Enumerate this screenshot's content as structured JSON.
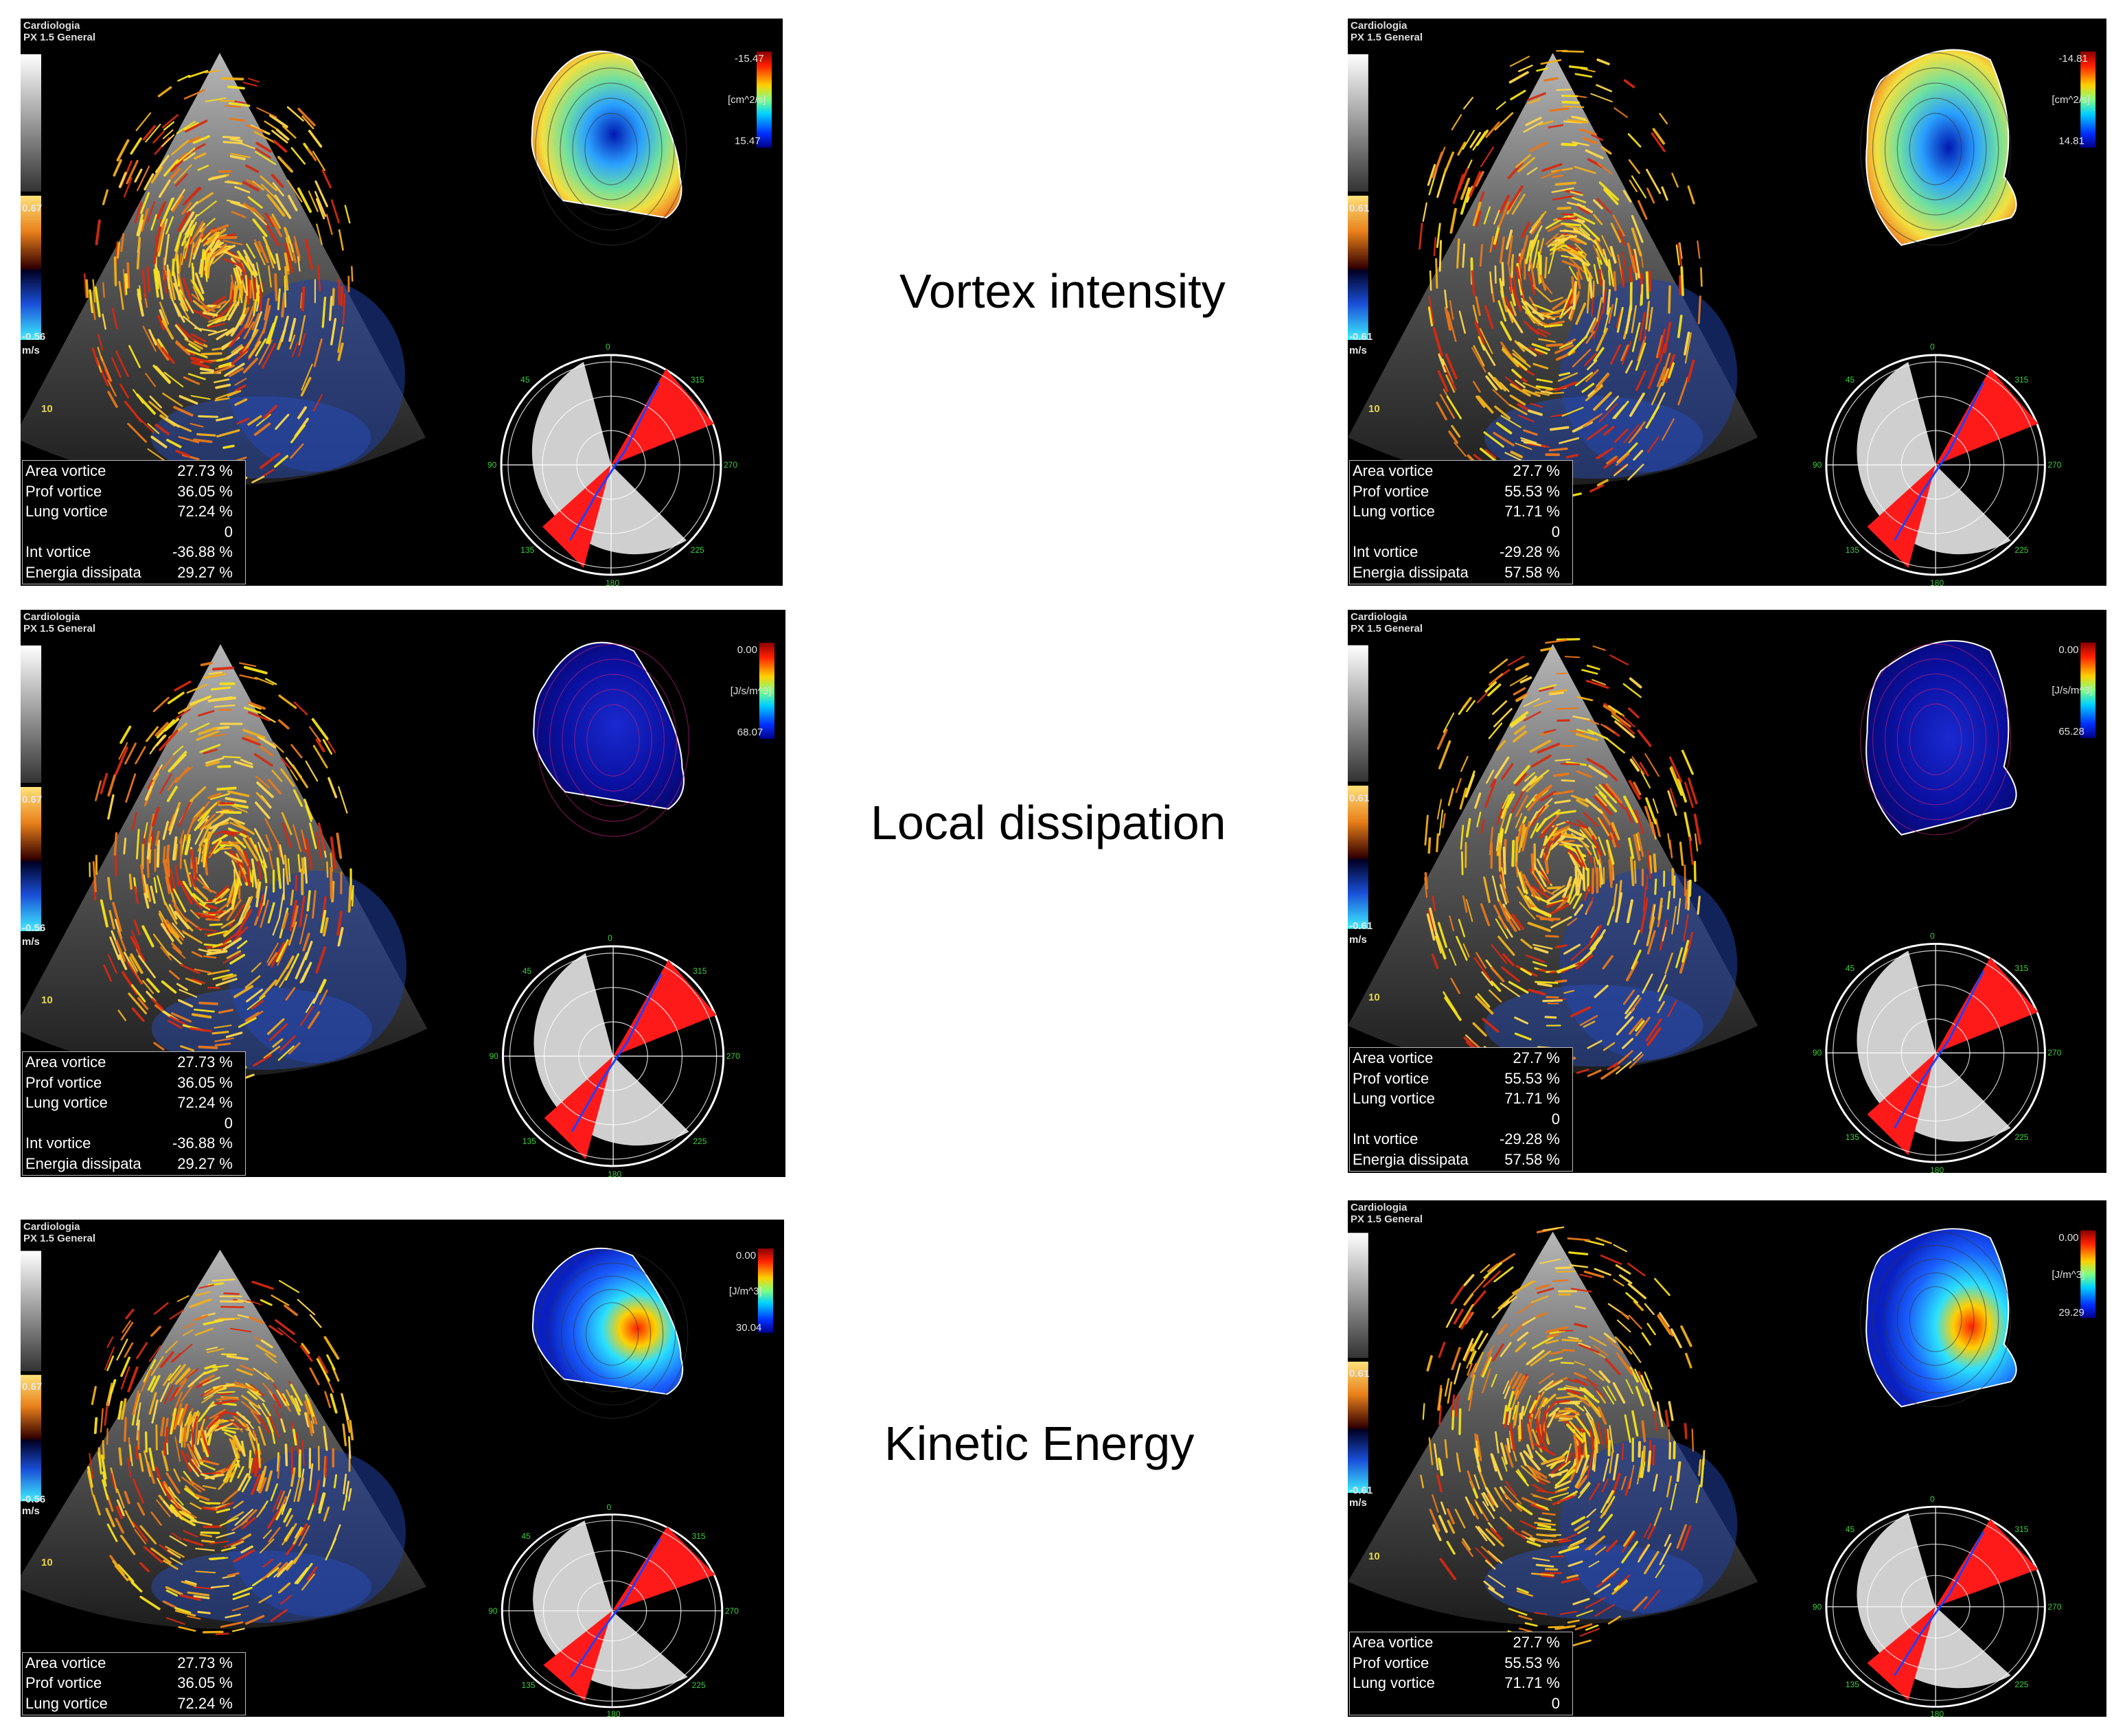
{
  "labels": {
    "vortex": "Vortex intensity",
    "dissipation": "Local dissipation",
    "kinetic": "Kinetic Energy"
  },
  "header": {
    "line1": "Cardiologia",
    "line2": "PX 1.5   General"
  },
  "panels": {
    "tl": {
      "scale_top": "0.67",
      "scale_bottom": "-0.56",
      "unit": "m/s",
      "depth": "10",
      "cb_top": "-15.47",
      "cb_mid": "[cm^2/s]",
      "cb_bot": "15.47",
      "stats": [
        {
          "k": "Area vortice",
          "v": "27.73 %"
        },
        {
          "k": "Prof vortice",
          "v": "36.05 %"
        },
        {
          "k": "Lung vortice",
          "v": "72.24 %"
        },
        {
          "k": "",
          "v": "0"
        },
        {
          "k": "Int vortice",
          "v": "-36.88 %"
        },
        {
          "k": "Energia dissipata",
          "v": "29.27 %"
        }
      ]
    },
    "tr": {
      "scale_top": "0.61",
      "scale_bottom": "-0.61",
      "unit": "m/s",
      "depth": "10",
      "cb_top": "-14.81",
      "cb_mid": "[cm^2/s]",
      "cb_bot": "14.81",
      "stats": [
        {
          "k": "Area vortice",
          "v": "27.7 %"
        },
        {
          "k": "Prof vortice",
          "v": "55.53 %"
        },
        {
          "k": "Lung vortice",
          "v": "71.71 %"
        },
        {
          "k": "",
          "v": "0"
        },
        {
          "k": "Int vortice",
          "v": "-29.28 %"
        },
        {
          "k": "Energia dissipata",
          "v": "57.58 %"
        }
      ]
    },
    "ml": {
      "scale_top": "0.67",
      "scale_bottom": "-0.56",
      "unit": "m/s",
      "depth": "10",
      "cb_top": "0.00",
      "cb_mid": "[J/s/m^3]",
      "cb_bot": "68.07",
      "stats": [
        {
          "k": "Area vortice",
          "v": "27.73 %"
        },
        {
          "k": "Prof vortice",
          "v": "36.05 %"
        },
        {
          "k": "Lung vortice",
          "v": "72.24 %"
        },
        {
          "k": "",
          "v": "0"
        },
        {
          "k": "Int vortice",
          "v": "-36.88 %"
        },
        {
          "k": "Energia dissipata",
          "v": "29.27 %"
        }
      ]
    },
    "mr": {
      "scale_top": "0.61",
      "scale_bottom": "-0.61",
      "unit": "m/s",
      "depth": "10",
      "cb_top": "0.00",
      "cb_mid": "[J/s/m^3]",
      "cb_bot": "65.28",
      "stats": [
        {
          "k": "Area vortice",
          "v": "27.7 %"
        },
        {
          "k": "Prof vortice",
          "v": "55.53 %"
        },
        {
          "k": "Lung vortice",
          "v": "71.71 %"
        },
        {
          "k": "",
          "v": "0"
        },
        {
          "k": "Int vortice",
          "v": "-29.28 %"
        },
        {
          "k": "Energia dissipata",
          "v": "57.58 %"
        }
      ]
    },
    "bl": {
      "scale_top": "0.67",
      "scale_bottom": "-0.56",
      "unit": "m/s",
      "depth": "10",
      "cb_top": "0.00",
      "cb_mid": "[J/m^3]",
      "cb_bot": "30.04",
      "stats": [
        {
          "k": "Area vortice",
          "v": "27.73 %"
        },
        {
          "k": "Prof vortice",
          "v": "36.05 %"
        },
        {
          "k": "Lung vortice",
          "v": "72.24 %"
        }
      ]
    },
    "br": {
      "scale_top": "0.61",
      "scale_bottom": "-0.61",
      "unit": "m/s",
      "depth": "10",
      "cb_top": "0.00",
      "cb_mid": "[J/m^3]",
      "cb_bot": "29.29",
      "stats": [
        {
          "k": "Area vortice",
          "v": "27.7 %"
        },
        {
          "k": "Prof vortice",
          "v": "55.53 %"
        },
        {
          "k": "Lung vortice",
          "v": "71.71 %"
        },
        {
          "k": "",
          "v": "0"
        }
      ]
    }
  },
  "polar_ticks": [
    "0",
    "45",
    "90",
    "135",
    "180",
    "225",
    "270",
    "315"
  ],
  "colors": {
    "flow_yellow": "#f2d21a",
    "flow_orange": "#e8781a",
    "flow_red": "#d62a10",
    "polar_red": "#ff1a1a",
    "polar_grey": "#cfcfcf"
  }
}
